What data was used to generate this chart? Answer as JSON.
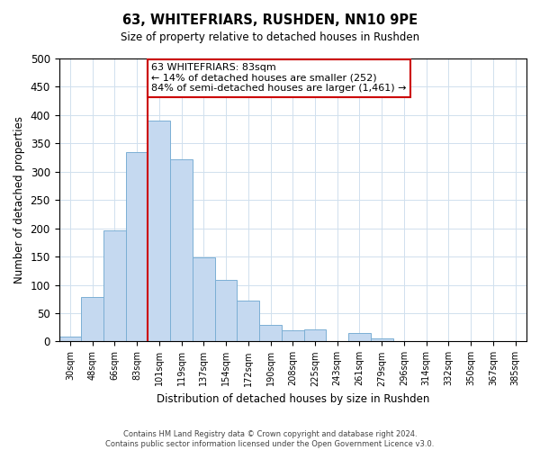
{
  "title": "63, WHITEFRIARS, RUSHDEN, NN10 9PE",
  "subtitle": "Size of property relative to detached houses in Rushden",
  "xlabel": "Distribution of detached houses by size in Rushden",
  "ylabel": "Number of detached properties",
  "bin_labels": [
    "30sqm",
    "48sqm",
    "66sqm",
    "83sqm",
    "101sqm",
    "119sqm",
    "137sqm",
    "154sqm",
    "172sqm",
    "190sqm",
    "208sqm",
    "225sqm",
    "243sqm",
    "261sqm",
    "279sqm",
    "296sqm",
    "314sqm",
    "332sqm",
    "350sqm",
    "367sqm",
    "385sqm"
  ],
  "bar_values": [
    8,
    78,
    197,
    335,
    390,
    322,
    149,
    109,
    73,
    29,
    19,
    22,
    0,
    15,
    5,
    0,
    0,
    0,
    0,
    0,
    0
  ],
  "bar_color": "#c5d9f0",
  "bar_edge_color": "#7bafd4",
  "vline_color": "#cc0000",
  "annotation_title": "63 WHITEFRIARS: 83sqm",
  "annotation_line1": "← 14% of detached houses are smaller (252)",
  "annotation_line2": "84% of semi-detached houses are larger (1,461) →",
  "annotation_box_color": "#ffffff",
  "annotation_box_edge": "#cc0000",
  "ylim": [
    0,
    500
  ],
  "yticks": [
    0,
    50,
    100,
    150,
    200,
    250,
    300,
    350,
    400,
    450,
    500
  ],
  "footer1": "Contains HM Land Registry data © Crown copyright and database right 2024.",
  "footer2": "Contains public sector information licensed under the Open Government Licence v3.0.",
  "bg_color": "#ffffff",
  "grid_color": "#d0e0ee"
}
